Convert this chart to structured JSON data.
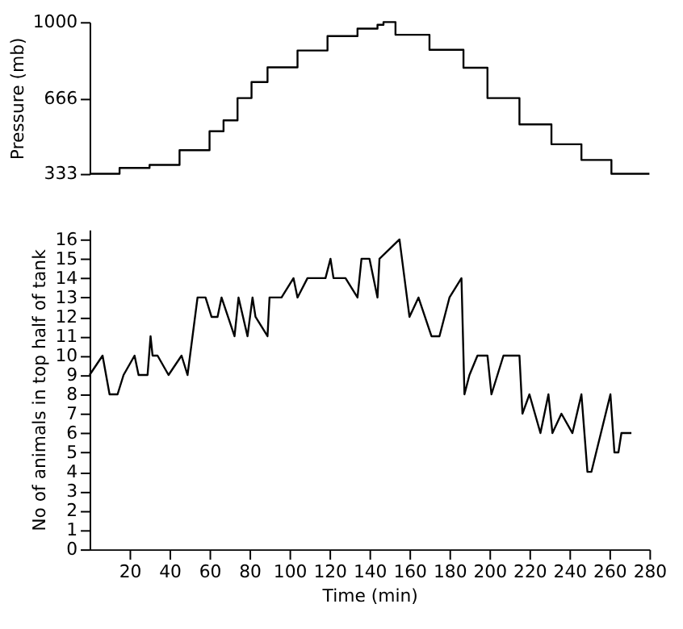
{
  "chart_data": [
    {
      "type": "step",
      "ylabel": "Pressure (mb)",
      "xlim": [
        0,
        280
      ],
      "ylim": [
        333,
        1000
      ],
      "yticks": [
        333,
        666,
        1000
      ],
      "tick_labels": "y",
      "grid": false,
      "marker": "none",
      "line_style": "solid",
      "x": [
        0,
        15,
        30,
        45,
        60,
        67,
        74,
        81,
        89,
        104,
        119,
        134,
        144,
        147,
        153,
        170,
        187,
        199,
        215,
        231,
        246,
        261,
        280
      ],
      "series": [
        {
          "color": "#000000",
          "values": [
            333,
            359,
            372,
            437,
            520,
            568,
            666,
            736,
            801,
            875,
            938,
            971,
            988,
            1000,
            944,
            878,
            799,
            666,
            550,
            463,
            394,
            333,
            333
          ]
        }
      ]
    },
    {
      "type": "line",
      "xlabel": "Time (min)",
      "ylabel": "No  of animals in top half of tank",
      "xlim": [
        0,
        280
      ],
      "ylim": [
        0,
        16.5
      ],
      "xticks": [
        20,
        40,
        60,
        80,
        100,
        120,
        140,
        160,
        180,
        200,
        220,
        240,
        260,
        280
      ],
      "yticks": [
        0,
        1,
        2,
        3,
        4,
        5,
        6,
        7,
        8,
        9,
        10,
        11,
        12,
        13,
        14,
        15,
        16
      ],
      "grid": false,
      "marker": "none",
      "line_style": "solid",
      "x": [
        0,
        6.5,
        10,
        14,
        17,
        22.5,
        24.5,
        29,
        30.5,
        31.5,
        34,
        39.5,
        46,
        49,
        54,
        58,
        61,
        64,
        66,
        72.5,
        74.5,
        79,
        81.5,
        83,
        89,
        90,
        96,
        102,
        104,
        109,
        118,
        120.5,
        122,
        128,
        134,
        136,
        140,
        144,
        145,
        155,
        160,
        164.5,
        171,
        175,
        180,
        186,
        187.5,
        190,
        194,
        199,
        201,
        207,
        215,
        216.5,
        220,
        225.5,
        229.5,
        231.5,
        236,
        241.5,
        246,
        249,
        251,
        260.5,
        262.5,
        264.5,
        266,
        271
      ],
      "series": [
        {
          "color": "#000000",
          "values": [
            9,
            10,
            8,
            8,
            9,
            10,
            9,
            9,
            11,
            10,
            10,
            9,
            10,
            9,
            13,
            13,
            12,
            12,
            13,
            11,
            13,
            11,
            13,
            12,
            11,
            13,
            13,
            14,
            13,
            14,
            14,
            15,
            14,
            14,
            13,
            15,
            15,
            13,
            15,
            16,
            12,
            13,
            11,
            11,
            13,
            14,
            8,
            9,
            10,
            10,
            8,
            10,
            10,
            7,
            8,
            6,
            8,
            6,
            7,
            6,
            8,
            4,
            4,
            8,
            5,
            5,
            6,
            6
          ]
        }
      ]
    }
  ]
}
